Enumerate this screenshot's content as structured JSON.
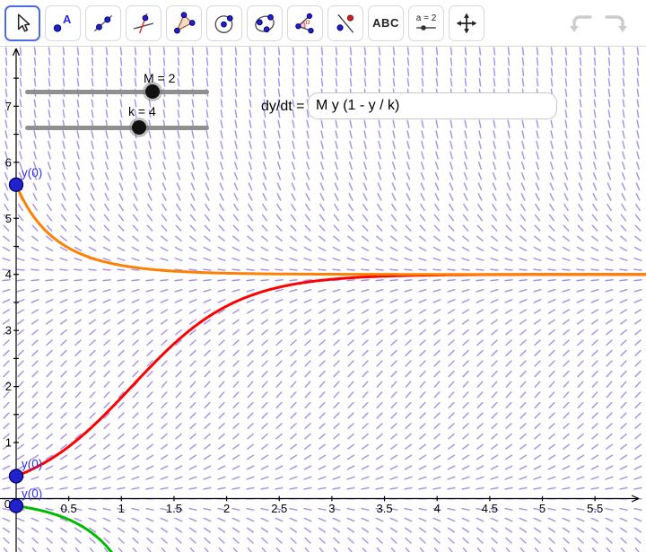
{
  "toolbar": {
    "tools": [
      {
        "name": "move-tool",
        "selected": true
      },
      {
        "name": "point-tool",
        "label_glyph": "A"
      },
      {
        "name": "line-tool"
      },
      {
        "name": "perpendicular-line-tool"
      },
      {
        "name": "polygon-tool"
      },
      {
        "name": "circle-tool"
      },
      {
        "name": "ellipse-tool"
      },
      {
        "name": "angle-tool",
        "label_glyph": "α"
      },
      {
        "name": "reflect-about-line-tool"
      },
      {
        "name": "text-tool",
        "label": "ABC"
      },
      {
        "name": "slider-tool",
        "label": "a = 2"
      },
      {
        "name": "move-graphics-view-tool"
      }
    ],
    "history_icons": [
      "undo-icon",
      "redo-icon"
    ]
  },
  "controls": {
    "sliders": [
      {
        "name": "M",
        "label": "M = 2",
        "value": 2
      },
      {
        "name": "k",
        "label": "k = 4",
        "value": 4
      }
    ],
    "equation": {
      "label": "dy/dt =",
      "value": "M y (1 - y / k)"
    }
  },
  "graph": {
    "type": "slope-field-with-solution-curves",
    "equation": "dy/dt = M y (1 - y / k)",
    "params": {
      "M": 2,
      "k": 4
    },
    "x_range": [
      -0.15,
      5.99
    ],
    "y_range": [
      -0.95,
      8.05
    ],
    "x_tick_step": 0.5,
    "y_tick_step": 0.5,
    "x_labels": [
      "0.5",
      "1",
      "1.5",
      "2",
      "2.5",
      "3",
      "3.5",
      "4",
      "4.5",
      "5",
      "5.5"
    ],
    "y_labels": [
      "1",
      "2",
      "3",
      "4",
      "5",
      "6",
      "7"
    ],
    "origin_label": "0",
    "field_color": "#9c80e8",
    "axis_color": "#000000",
    "curves": [
      {
        "name": "upper-solution-curve",
        "color": "#ff8000",
        "y0": 5.6
      },
      {
        "name": "middle-solution-curve",
        "color": "#ff0000",
        "y0": 0.4
      },
      {
        "name": "lower-solution-curve",
        "color": "#00bb00",
        "y0": -0.13
      }
    ],
    "points": [
      {
        "label": "y(0)",
        "t": 0,
        "y": 5.6,
        "fill": "#2222cc"
      },
      {
        "label": "y(0)",
        "t": 0,
        "y": 0.4,
        "fill": "#2222cc"
      },
      {
        "label": "y(0)",
        "t": 0,
        "y": -0.13,
        "fill": "#2222cc"
      }
    ],
    "point_label_color": "#3030ff"
  }
}
